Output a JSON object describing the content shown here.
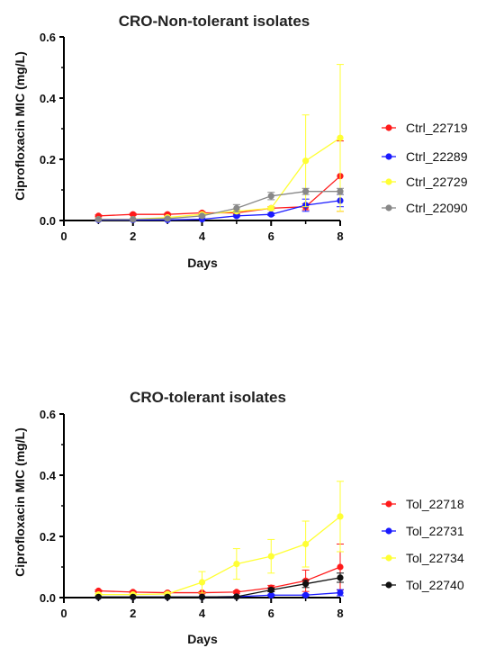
{
  "chart_data": [
    {
      "type": "line",
      "title": "CRO-Non-tolerant isolates",
      "xlabel": "Days",
      "ylabel": "Ciprofloxacin MIC (mg/L)",
      "xlim": [
        0,
        8
      ],
      "ylim": [
        0,
        0.6
      ],
      "xticks": [
        "0",
        "2",
        "4",
        "6",
        "8"
      ],
      "yticks": [
        "0.0",
        "0.2",
        "0.4",
        "0.6"
      ],
      "legend_position": "right",
      "series": [
        {
          "name": "Ctrl_22719",
          "color": "#ff1a1a",
          "x": [
            1,
            2,
            3,
            4,
            5,
            6,
            7,
            8
          ],
          "y": [
            0.015,
            0.02,
            0.02,
            0.025,
            0.025,
            0.04,
            0.045,
            0.145
          ],
          "err": [
            0.003,
            0.003,
            0.003,
            0.004,
            0.004,
            0.005,
            0.01,
            0.115
          ]
        },
        {
          "name": "Ctrl_22289",
          "color": "#1a1aff",
          "x": [
            1,
            2,
            3,
            4,
            5,
            6,
            7,
            8
          ],
          "y": [
            0.002,
            0.002,
            0.002,
            0.004,
            0.015,
            0.02,
            0.05,
            0.065
          ],
          "err": [
            0.001,
            0.001,
            0.001,
            0.001,
            0.003,
            0.004,
            0.02,
            0.02
          ]
        },
        {
          "name": "Ctrl_22729",
          "color": "#ffff33",
          "x": [
            1,
            2,
            3,
            4,
            5,
            6,
            7,
            8
          ],
          "y": [
            0.004,
            0.004,
            0.01,
            0.02,
            0.03,
            0.04,
            0.195,
            0.27
          ],
          "err": [
            0.001,
            0.001,
            0.003,
            0.004,
            0.005,
            0.005,
            0.15,
            0.24
          ]
        },
        {
          "name": "Ctrl_22090",
          "color": "#888888",
          "x": [
            1,
            2,
            3,
            4,
            5,
            6,
            7,
            8
          ],
          "y": [
            0.004,
            0.004,
            0.006,
            0.015,
            0.04,
            0.08,
            0.095,
            0.095
          ],
          "err": [
            0.001,
            0.001,
            0.002,
            0.003,
            0.012,
            0.012,
            0.01,
            0.01
          ]
        }
      ]
    },
    {
      "type": "line",
      "title": "CRO-tolerant isolates",
      "xlabel": "Days",
      "ylabel": "Ciprofloxacin MIC (mg/L)",
      "xlim": [
        0,
        8
      ],
      "ylim": [
        0,
        0.6
      ],
      "xticks": [
        "0",
        "2",
        "4",
        "6",
        "8"
      ],
      "yticks": [
        "0.0",
        "0.2",
        "0.4",
        "0.6"
      ],
      "legend_position": "right",
      "series": [
        {
          "name": "Tol_22718",
          "color": "#ff1a1a",
          "x": [
            1,
            2,
            3,
            4,
            5,
            6,
            7,
            8
          ],
          "y": [
            0.022,
            0.018,
            0.016,
            0.016,
            0.018,
            0.032,
            0.055,
            0.1
          ],
          "err": [
            0.003,
            0.003,
            0.003,
            0.003,
            0.004,
            0.008,
            0.035,
            0.075
          ]
        },
        {
          "name": "Tol_22731",
          "color": "#1a1aff",
          "x": [
            1,
            2,
            3,
            4,
            5,
            6,
            7,
            8
          ],
          "y": [
            0.002,
            0.002,
            0.002,
            0.002,
            0.003,
            0.008,
            0.008,
            0.016
          ],
          "err": [
            0.001,
            0.001,
            0.001,
            0.001,
            0.001,
            0.003,
            0.003,
            0.01
          ]
        },
        {
          "name": "Tol_22734",
          "color": "#ffff33",
          "x": [
            1,
            2,
            3,
            4,
            5,
            6,
            7,
            8
          ],
          "y": [
            0.01,
            0.01,
            0.012,
            0.05,
            0.11,
            0.135,
            0.175,
            0.265
          ],
          "err": [
            0.003,
            0.003,
            0.004,
            0.035,
            0.05,
            0.055,
            0.075,
            0.115
          ]
        },
        {
          "name": "Tol_22740",
          "color": "#111111",
          "x": [
            1,
            2,
            3,
            4,
            5,
            6,
            7,
            8
          ],
          "y": [
            0.002,
            0.002,
            0.002,
            0.002,
            0.003,
            0.025,
            0.045,
            0.065
          ],
          "err": [
            0.001,
            0.001,
            0.001,
            0.001,
            0.001,
            0.006,
            0.012,
            0.015
          ]
        }
      ]
    }
  ]
}
